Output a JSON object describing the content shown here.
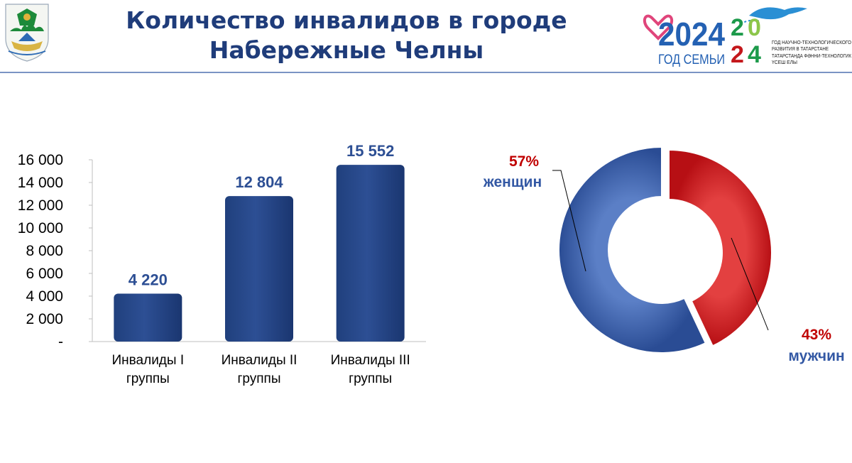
{
  "header": {
    "title_line1": "Количество инвалидов в городе",
    "title_line2": "Набережные Челны"
  },
  "logo2024": {
    "year": "2024",
    "family": "ГОД СЕМЬИ",
    "text1": "ГОД НАУЧНО-ТЕХНОЛОГИЧЕСКОГО",
    "text2": "РАЗВИТИЯ В ТАТАРСТАНЕ",
    "text3": "ТАТАРСТАНДА ФӘННИ-ТЕХНОЛОГИК",
    "text4": "ҮСЕШ ЕЛЫ"
  },
  "colors": {
    "title": "#1f3c7a",
    "bar": "#2d4f94",
    "donut_blue": "#3358a4",
    "donut_red": "#c4171b",
    "percent_red": "#c00000"
  },
  "chart_data": [
    {
      "type": "bar",
      "categories": [
        [
          "Инвалиды I",
          "группы"
        ],
        [
          "Инвалиды II",
          "группы"
        ],
        [
          "Инвалиды III",
          "группы"
        ]
      ],
      "values": [
        4220,
        12804,
        15552
      ],
      "value_labels": [
        "4 220",
        "12 804",
        "15 552"
      ],
      "ylim": [
        0,
        16000
      ],
      "yticks": [
        0,
        2000,
        4000,
        6000,
        8000,
        10000,
        12000,
        14000,
        16000
      ],
      "ytick_labels": [
        "-",
        "2 000",
        "4 000",
        "6 000",
        "8 000",
        "10 000",
        "12 000",
        "14 000",
        "16 000"
      ],
      "grid": false
    },
    {
      "type": "pie",
      "donut": true,
      "slices": [
        {
          "label": "женщин",
          "value": 57,
          "percent_label": "57%"
        },
        {
          "label": "мужчин",
          "value": 43,
          "percent_label": "43%"
        }
      ]
    }
  ]
}
